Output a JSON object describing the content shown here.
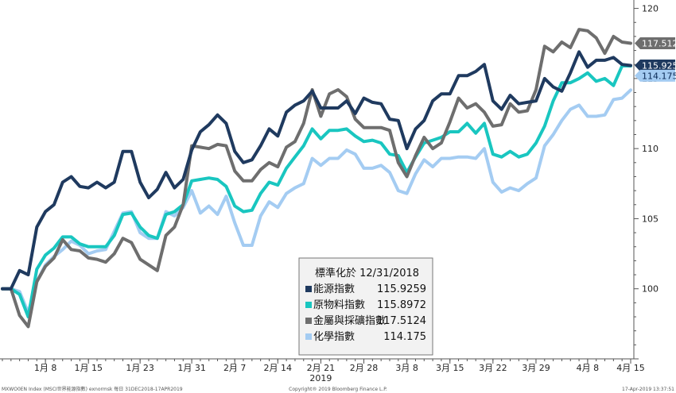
{
  "chart_data": {
    "type": "line",
    "title": "",
    "xlabel": "",
    "ylabel": "",
    "ylim": [
      95,
      120.6
    ],
    "y_ticks": [
      100,
      105,
      110,
      115,
      120
    ],
    "x_ticks": [
      {
        "i": 5,
        "label": "1月 8"
      },
      {
        "i": 10,
        "label": "1月 15"
      },
      {
        "i": 16,
        "label": "1月 23"
      },
      {
        "i": 22,
        "label": "1月 31"
      },
      {
        "i": 27,
        "label": "2月 7"
      },
      {
        "i": 32,
        "label": "2月 14"
      },
      {
        "i": 37,
        "label": "2月 21"
      },
      {
        "i": 42,
        "label": "2月 28"
      },
      {
        "i": 47,
        "label": "3月 8"
      },
      {
        "i": 52,
        "label": "3月 15"
      },
      {
        "i": 57,
        "label": "3月 22"
      },
      {
        "i": 62,
        "label": "3月 29"
      },
      {
        "i": 68,
        "label": "4月 8"
      },
      {
        "i": 73,
        "label": "4月 15"
      }
    ],
    "year_label": {
      "i": 37,
      "label": "2019"
    },
    "grid": false,
    "series": [
      {
        "name": "能源指數",
        "color": "#1f3a5f",
        "end_value": "115.9259",
        "values": [
          100,
          100,
          101.3,
          101.0,
          104.4,
          105.5,
          106.0,
          107.6,
          108.0,
          107.3,
          107.2,
          107.6,
          107.2,
          107.6,
          109.8,
          109.8,
          107.6,
          106.5,
          107.1,
          108.3,
          107.2,
          107.8,
          109.9,
          111.2,
          111.7,
          112.4,
          111.8,
          109.8,
          109.0,
          109.2,
          110.2,
          111.4,
          110.9,
          112.6,
          113.1,
          113.4,
          114.1,
          112.9,
          112.9,
          112.9,
          113.4,
          112.5,
          113.6,
          113.3,
          113.2,
          112.1,
          112.0,
          110.0,
          111.4,
          112.0,
          113.4,
          113.9,
          113.9,
          115.2,
          115.2,
          115.5,
          116.0,
          113.4,
          112.8,
          113.8,
          113.2,
          113.3,
          113.4,
          115.0,
          114.4,
          114.1,
          115.4,
          116.9,
          115.8,
          116.3,
          116.3,
          116.5,
          116.0,
          115.9259
        ]
      },
      {
        "name": "原物料指數",
        "color": "#19c6c0",
        "end_value": "115.8972",
        "values": [
          100,
          100,
          99.6,
          98.0,
          101.4,
          102.4,
          102.9,
          103.7,
          103.7,
          103.2,
          103.0,
          103.0,
          103.0,
          103.8,
          105.3,
          105.4,
          104.4,
          103.8,
          103.6,
          105.3,
          105.5,
          106.0,
          107.7,
          107.8,
          107.9,
          107.8,
          107.3,
          105.9,
          105.5,
          105.6,
          106.8,
          107.6,
          107.4,
          108.6,
          109.4,
          110.2,
          111.4,
          110.7,
          111.3,
          111.3,
          111.4,
          110.9,
          110.5,
          110.6,
          110.4,
          109.6,
          109.5,
          108.3,
          109.4,
          110.4,
          110.6,
          110.8,
          111.2,
          111.2,
          111.8,
          111.1,
          111.8,
          109.6,
          109.4,
          109.8,
          109.4,
          109.6,
          110.4,
          111.6,
          113.4,
          114.7,
          114.7,
          115.0,
          115.4,
          114.8,
          115.0,
          114.5,
          115.9,
          115.8972
        ]
      },
      {
        "name": "金屬與採礦指數",
        "color": "#6e6e6e",
        "end_value": "117.5124",
        "values": [
          100,
          100,
          98.1,
          97.3,
          100.5,
          101.6,
          102.2,
          103.5,
          102.8,
          102.7,
          102.2,
          102.1,
          101.9,
          102.5,
          103.6,
          103.3,
          102.1,
          101.7,
          101.3,
          103.8,
          104.4,
          106.0,
          110.2,
          110.1,
          110.0,
          110.3,
          110.2,
          108.4,
          107.7,
          107.7,
          108.5,
          109.0,
          108.7,
          110.1,
          110.5,
          111.8,
          114.2,
          112.3,
          113.9,
          114.2,
          113.7,
          112.1,
          111.5,
          111.5,
          111.5,
          111.3,
          109.0,
          108.0,
          109.5,
          110.8,
          110.0,
          110.4,
          111.9,
          113.6,
          112.9,
          113.2,
          112.6,
          111.6,
          111.7,
          113.2,
          112.6,
          112.7,
          114.2,
          117.3,
          116.9,
          117.6,
          117.2,
          118.5,
          118.4,
          117.9,
          116.8,
          118.0,
          117.6,
          117.5124
        ]
      },
      {
        "name": "化學指數",
        "color": "#a4ccf2",
        "end_value": "114.175",
        "values": [
          100,
          100,
          99.8,
          98.3,
          100.5,
          101.7,
          102.3,
          102.8,
          103.4,
          103.1,
          102.5,
          102.7,
          102.8,
          104.1,
          105.4,
          105.5,
          104.0,
          103.6,
          103.6,
          105.5,
          105.2,
          105.8,
          107.0,
          105.4,
          105.9,
          105.3,
          106.6,
          104.7,
          103.1,
          103.1,
          105.2,
          106.2,
          105.8,
          106.8,
          107.2,
          107.5,
          109.3,
          108.8,
          109.3,
          109.3,
          109.9,
          109.6,
          108.6,
          108.6,
          108.8,
          108.3,
          107.0,
          106.8,
          108.2,
          109.2,
          108.7,
          109.3,
          109.3,
          109.4,
          109.4,
          109.3,
          110.0,
          107.6,
          106.9,
          107.2,
          107.0,
          107.5,
          107.9,
          110.2,
          111.0,
          112.0,
          112.8,
          113.1,
          112.3,
          112.3,
          112.4,
          113.5,
          113.6,
          114.175
        ]
      }
    ],
    "legend": {
      "title": "標準化於  12/31/2018",
      "placement": "bottom-center",
      "entries": [
        {
          "label": "能源指數",
          "value": "115.9259",
          "color": "#1f3a5f"
        },
        {
          "label": "原物料指數",
          "value": "115.8972",
          "color": "#19c6c0"
        },
        {
          "label": "金屬與採礦指數",
          "value": "117.5124",
          "color": "#6e6e6e"
        },
        {
          "label": "化學指數",
          "value": "114.175",
          "color": "#a4ccf2"
        }
      ]
    }
  },
  "footer": {
    "left": "MXWO0EN Index (MSCI世界能源指數) exnormsk  每日 31DEC2018-17APR2019",
    "center": "Copyright® 2019 Bloomberg Finance L.P.",
    "right": "17-Apr-2019 13:37:51"
  }
}
